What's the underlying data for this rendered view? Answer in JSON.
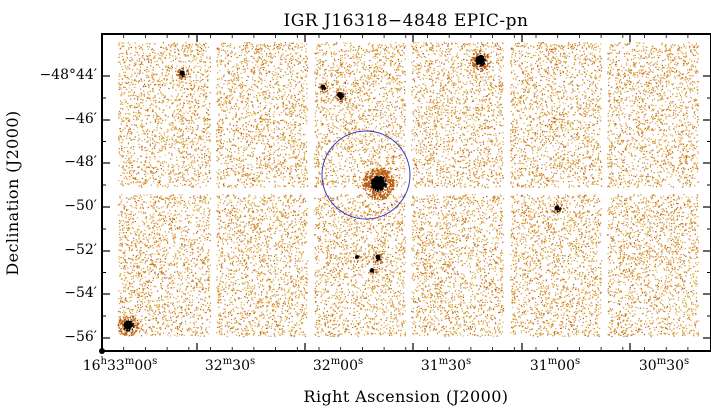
{
  "chart_data": {
    "type": "scatter",
    "title": "IGR J16318−4848 EPIC-pn",
    "xlabel": "Right Ascension (J2000)",
    "ylabel": "Declination (J2000)",
    "x_ticks": [
      {
        "text": "16",
        "sup1": "h",
        "mid": "33",
        "sup2": "m",
        "end": "00",
        "sup3": "s"
      },
      {
        "text": "",
        "sup1": "",
        "mid": "32",
        "sup2": "m",
        "end": "30",
        "sup3": "s"
      },
      {
        "text": "",
        "sup1": "",
        "mid": "32",
        "sup2": "m",
        "end": "00",
        "sup3": "s"
      },
      {
        "text": "",
        "sup1": "",
        "mid": "31",
        "sup2": "m",
        "end": "30",
        "sup3": "s"
      },
      {
        "text": "",
        "sup1": "",
        "mid": "31",
        "sup2": "m",
        "end": "00",
        "sup3": "s"
      },
      {
        "text": "",
        "sup1": "",
        "mid": "30",
        "sup2": "m",
        "end": "30",
        "sup3": "s"
      }
    ],
    "y_ticks": [
      "−48°44′",
      "−46′",
      "−48′",
      "−50′",
      "−52′",
      "−54′",
      "−56′"
    ],
    "colors": {
      "counts_low": "#d99a2b",
      "counts_mid": "#b85a10",
      "counts_high": "#000000",
      "region_circle": "#3a3ad0"
    }
  }
}
